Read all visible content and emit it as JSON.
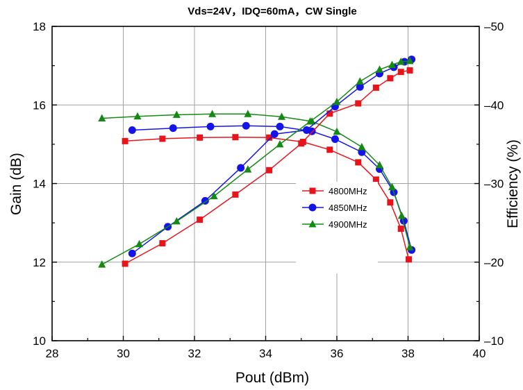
{
  "chart_data": {
    "type": "line",
    "title": "Vds=24V，IDQ=60mA，CW Single",
    "xlabel": "Pout (dBm)",
    "ylabel": "Gain (dB)",
    "y2label": "Efficiency (%)",
    "xlim": [
      28,
      40
    ],
    "ylim": [
      10,
      18
    ],
    "y2lim": [
      10,
      50
    ],
    "xticks": [
      "28",
      "30",
      "32",
      "34",
      "36",
      "38",
      "40"
    ],
    "yticks": [
      "10",
      "12",
      "14",
      "16",
      "18"
    ],
    "y2ticks": [
      "10",
      "20",
      "30",
      "40",
      "50"
    ],
    "grid": true,
    "legend_position": "lower-right",
    "series": [
      {
        "name": "4800MHz",
        "color": "#e8141b",
        "marker": "square",
        "axis": "left",
        "metric": "gain",
        "x": [
          30.05,
          31.1,
          32.15,
          33.15,
          34.1,
          35.05,
          35.8,
          36.6,
          37.1,
          37.5,
          37.8,
          38.02
        ],
        "y": [
          15.08,
          15.14,
          15.17,
          15.18,
          15.17,
          15.06,
          14.86,
          14.54,
          14.1,
          13.52,
          12.85,
          12.07
        ]
      },
      {
        "name": "4850MHz",
        "color": "#1414e8",
        "marker": "circle",
        "axis": "left",
        "metric": "gain",
        "x": [
          30.25,
          31.4,
          32.45,
          33.45,
          34.4,
          35.3,
          35.95,
          36.7,
          37.2,
          37.6,
          37.88,
          38.1
        ],
        "y": [
          15.36,
          15.41,
          15.45,
          15.47,
          15.45,
          15.33,
          15.13,
          14.8,
          14.37,
          13.78,
          13.05,
          12.31
        ]
      },
      {
        "name": "4900MHz",
        "color": "#148a14",
        "marker": "triangle",
        "axis": "left",
        "metric": "gain",
        "x": [
          29.4,
          30.4,
          31.5,
          32.5,
          33.5,
          34.45,
          35.3,
          36.0,
          36.7,
          37.2,
          37.55,
          37.82,
          38.05
        ],
        "y": [
          15.66,
          15.71,
          15.75,
          15.77,
          15.77,
          15.7,
          15.58,
          15.32,
          14.93,
          14.47,
          13.91,
          13.18,
          12.38
        ]
      },
      {
        "name": "4800MHz",
        "color": "#e8141b",
        "marker": "square",
        "axis": "right",
        "metric": "efficiency",
        "x": [
          30.05,
          31.1,
          32.15,
          33.15,
          34.1,
          35.0,
          35.8,
          36.6,
          37.1,
          37.5,
          37.8,
          38.05
        ],
        "y": [
          19.8,
          22.4,
          25.4,
          28.6,
          31.7,
          35.1,
          38.9,
          40.2,
          42.2,
          43.4,
          44.2,
          44.4
        ]
      },
      {
        "name": "4850MHz",
        "color": "#1414e8",
        "marker": "circle",
        "axis": "right",
        "metric": "efficiency",
        "x": [
          30.25,
          31.25,
          32.3,
          33.3,
          34.25,
          35.15,
          35.95,
          36.65,
          37.2,
          37.6,
          37.9,
          38.1
        ],
        "y": [
          21.1,
          24.5,
          27.8,
          32.0,
          36.3,
          36.8,
          39.8,
          42.3,
          44.0,
          44.8,
          45.5,
          45.8
        ]
      },
      {
        "name": "4900MHz",
        "color": "#148a14",
        "marker": "triangle",
        "axis": "right",
        "metric": "efficiency",
        "x": [
          29.4,
          30.45,
          31.5,
          32.55,
          33.5,
          34.4,
          35.25,
          36.0,
          36.65,
          37.2,
          37.55,
          37.8,
          38.05
        ],
        "y": [
          19.7,
          22.3,
          25.2,
          28.4,
          31.8,
          35.0,
          37.9,
          40.4,
          43.0,
          44.5,
          45.1,
          45.5,
          45.6
        ]
      }
    ]
  }
}
